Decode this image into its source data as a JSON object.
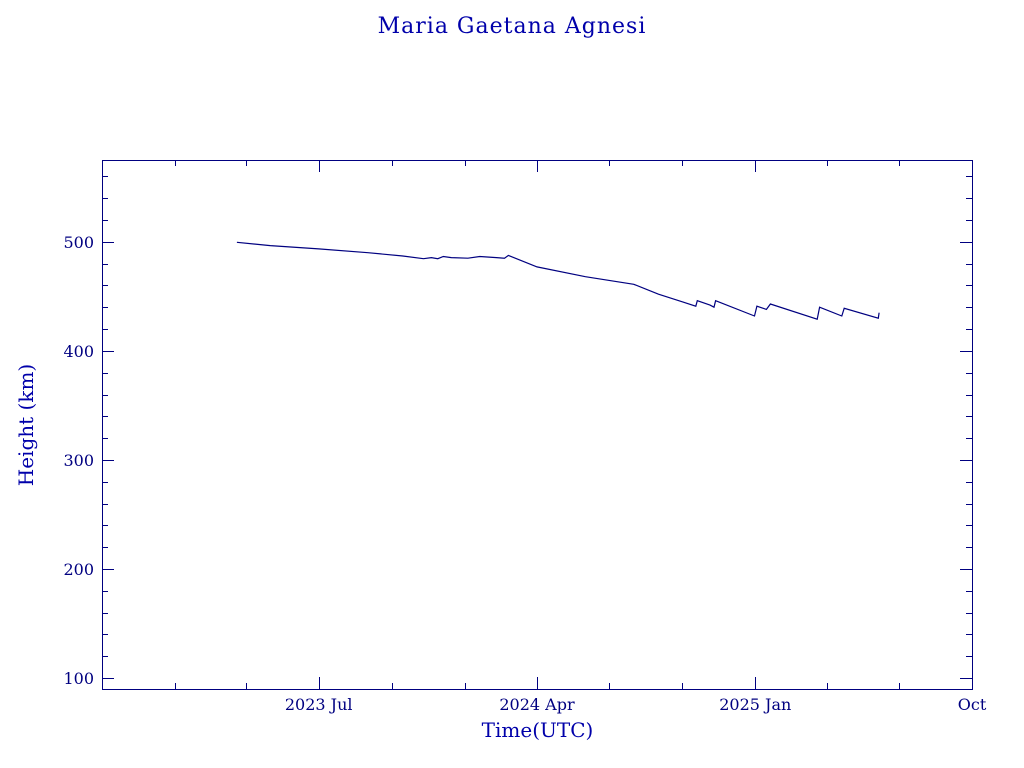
{
  "chart_data": {
    "type": "line",
    "title": "Maria Gaetana Agnesi",
    "xlabel": "Time(UTC)",
    "ylabel": "Height (km)",
    "xlim": [
      "2022-10-01",
      "2025-10-01"
    ],
    "ylim": [
      90,
      575
    ],
    "x_tick_labels": [
      {
        "date": "2023-07-01",
        "label": "2023 Jul"
      },
      {
        "date": "2024-04-01",
        "label": "2024 Apr"
      },
      {
        "date": "2025-01-01",
        "label": "2025 Jan"
      },
      {
        "date": "2025-10-01",
        "label": "Oct"
      }
    ],
    "y_ticks": [
      100,
      200,
      300,
      400,
      500
    ],
    "series": [
      {
        "color": "#000080",
        "points": [
          [
            "2023-03-20",
            499.5
          ],
          [
            "2023-05-01",
            496.5
          ],
          [
            "2023-07-01",
            493.5
          ],
          [
            "2023-09-01",
            490
          ],
          [
            "2023-10-15",
            487
          ],
          [
            "2023-11-10",
            484.5
          ],
          [
            "2023-11-20",
            485.5
          ],
          [
            "2023-11-28",
            484.5
          ],
          [
            "2023-12-05",
            486.5
          ],
          [
            "2023-12-15",
            485.5
          ],
          [
            "2024-01-05",
            485
          ],
          [
            "2024-01-20",
            486.5
          ],
          [
            "2024-02-10",
            485.5
          ],
          [
            "2024-02-20",
            485
          ],
          [
            "2024-02-25",
            487.5
          ],
          [
            "2024-04-01",
            477
          ],
          [
            "2024-06-01",
            468
          ],
          [
            "2024-08-01",
            461
          ],
          [
            "2024-09-01",
            452
          ],
          [
            "2024-10-01",
            445
          ],
          [
            "2024-10-18",
            441
          ],
          [
            "2024-10-20",
            446
          ],
          [
            "2024-11-05",
            442
          ],
          [
            "2024-11-10",
            440
          ],
          [
            "2024-11-12",
            446
          ],
          [
            "2024-12-31",
            432
          ],
          [
            "2025-01-03",
            441
          ],
          [
            "2025-01-15",
            438
          ],
          [
            "2025-01-20",
            443
          ],
          [
            "2025-03-20",
            429
          ],
          [
            "2025-03-23",
            440
          ],
          [
            "2025-04-20",
            432
          ],
          [
            "2025-04-23",
            439
          ],
          [
            "2025-06-05",
            430
          ],
          [
            "2025-06-06",
            435
          ]
        ]
      }
    ]
  }
}
